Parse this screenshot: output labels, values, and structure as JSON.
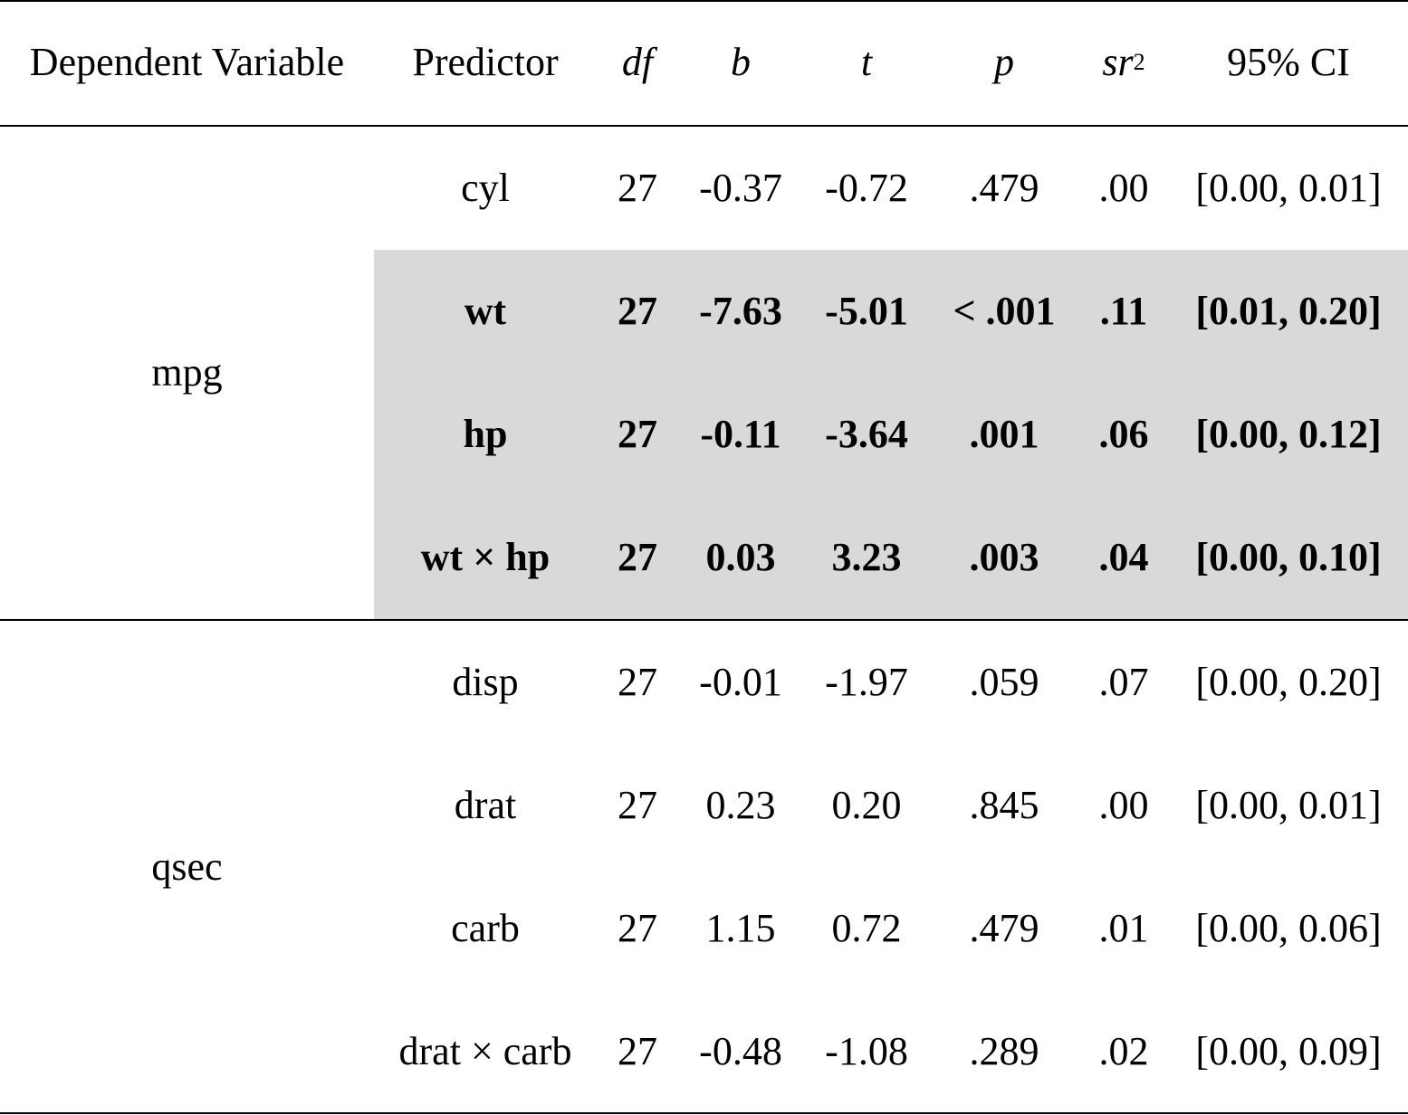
{
  "table": {
    "headers": {
      "dependent_variable": "Dependent Variable",
      "predictor": "Predictor",
      "df": "df",
      "b": "b",
      "t": "t",
      "p": "p",
      "sr_base": "sr",
      "sr_sup": "2",
      "ci": "95% CI"
    },
    "groups": [
      {
        "dv": "mpg",
        "rows": [
          {
            "predictor": "cyl",
            "df": "27",
            "b": "-0.37",
            "t": "-0.72",
            "p": ".479",
            "sr2": ".00",
            "ci": "[0.00, 0.01]",
            "highlight": false
          },
          {
            "predictor": "wt",
            "df": "27",
            "b": "-7.63",
            "t": "-5.01",
            "p": "< .001",
            "sr2": ".11",
            "ci": "[0.01, 0.20]",
            "highlight": true
          },
          {
            "predictor": "hp",
            "df": "27",
            "b": "-0.11",
            "t": "-3.64",
            "p": ".001",
            "sr2": ".06",
            "ci": "[0.00, 0.12]",
            "highlight": true
          },
          {
            "predictor": "wt × hp",
            "df": "27",
            "b": "0.03",
            "t": "3.23",
            "p": ".003",
            "sr2": ".04",
            "ci": "[0.00, 0.10]",
            "highlight": true
          }
        ]
      },
      {
        "dv": "qsec",
        "rows": [
          {
            "predictor": "disp",
            "df": "27",
            "b": "-0.01",
            "t": "-1.97",
            "p": ".059",
            "sr2": ".07",
            "ci": "[0.00, 0.20]",
            "highlight": false
          },
          {
            "predictor": "drat",
            "df": "27",
            "b": "0.23",
            "t": "0.20",
            "p": ".845",
            "sr2": ".00",
            "ci": "[0.00, 0.01]",
            "highlight": false
          },
          {
            "predictor": "carb",
            "df": "27",
            "b": "1.15",
            "t": "0.72",
            "p": ".479",
            "sr2": ".01",
            "ci": "[0.00, 0.06]",
            "highlight": false
          },
          {
            "predictor": "drat × carb",
            "df": "27",
            "b": "-0.48",
            "t": "-1.08",
            "p": ".289",
            "sr2": ".02",
            "ci": "[0.00, 0.09]",
            "highlight": false
          }
        ]
      }
    ],
    "colors": {
      "highlight_fill": "#d9d9d9",
      "rule": "#000000",
      "text": "#000000"
    }
  }
}
